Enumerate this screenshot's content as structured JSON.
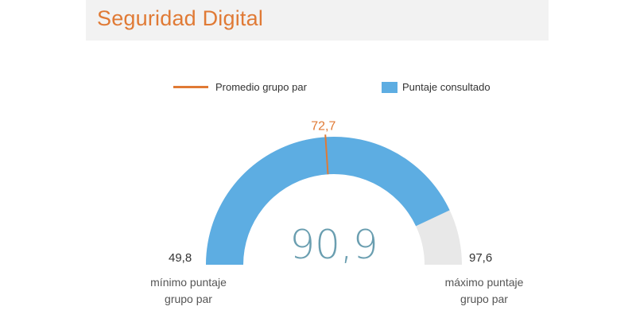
{
  "title": "Seguridad Digital",
  "legend": {
    "average_label": "Promedio grupo par",
    "score_label": "Puntaje consultado"
  },
  "colors": {
    "accent": "#e07a35",
    "fill": "#5dade2",
    "track": "#e8e8e8",
    "center_value": "#6a9eb0"
  },
  "chart_data": {
    "type": "gauge",
    "min": 49.8,
    "max": 97.6,
    "value": 90.9,
    "average": 72.7,
    "value_label": "90,9",
    "average_label": "72,7",
    "min_label": "49,8",
    "max_label": "97,6",
    "min_caption": [
      "mínimo puntaje",
      "grupo par"
    ],
    "max_caption": [
      "máximo puntaje",
      "grupo par"
    ]
  }
}
